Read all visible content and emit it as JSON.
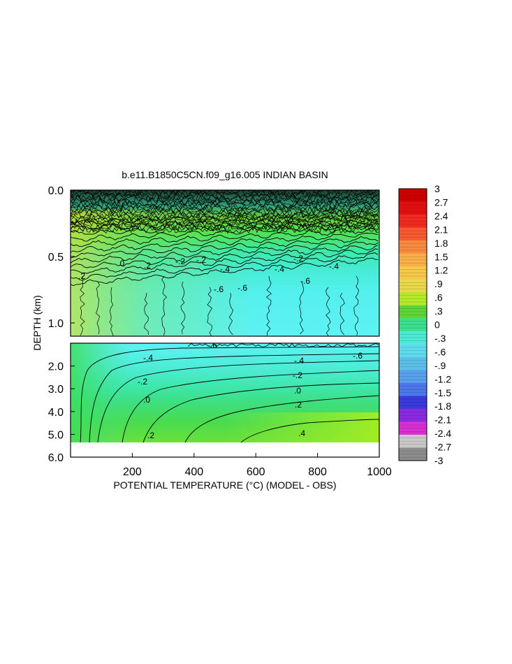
{
  "chart_data": {
    "type": "heatmap",
    "title": "b.e11.B1850C5CN.f09_g16.005 INDIAN BASIN",
    "xlabel": "POTENTIAL TEMPERATURE (°C) (MODEL - OBS)",
    "ylabel": "DEPTH (km)",
    "xlim": [
      0,
      1000
    ],
    "x_ticks": [
      200,
      400,
      600,
      800,
      1000
    ],
    "x_tick_labels": [
      "200",
      "400",
      "600",
      "800",
      "1000"
    ],
    "panels": [
      {
        "name": "upper",
        "ylim": [
          0.0,
          1.1
        ],
        "y_ticks": [
          0.0,
          0.5,
          1.0
        ],
        "y_tick_labels": [
          "0.0",
          "0.5",
          "1.0"
        ]
      },
      {
        "name": "lower",
        "ylim": [
          1.0,
          6.0
        ],
        "y_ticks": [
          2.0,
          3.0,
          4.0,
          5.0,
          6.0
        ],
        "y_tick_labels": [
          "2.0",
          "3.0",
          "4.0",
          "5.0",
          "6.0"
        ]
      }
    ],
    "contour_labels_upper": [
      ".2",
      "0",
      ".2",
      "-.2",
      "-.4",
      "-.2",
      "-.4",
      "-.2",
      "-.4",
      "-.6",
      "-.6",
      "-.6"
    ],
    "contour_labels_lower": [
      "-.6",
      "-.6",
      "-.4",
      "-.4",
      "-.2",
      "-.2",
      ".0",
      ".0",
      ".2",
      ".2",
      ".4"
    ],
    "colorbar": {
      "min": -3,
      "max": 3,
      "labels": [
        "3",
        "2.7",
        "2.4",
        "2.1",
        "1.8",
        "1.5",
        "1.2",
        ".9",
        ".6",
        ".3",
        "0",
        "-.3",
        "-.6",
        "-.9",
        "-1.2",
        "-1.5",
        "-1.8",
        "-2.1",
        "-2.4",
        "-2.7",
        "-3"
      ],
      "colors": [
        "#cc0000",
        "#e01010",
        "#f02a20",
        "#f55a30",
        "#f88a40",
        "#f9ae48",
        "#f5c84a",
        "#e8d84a",
        "#b4ea2a",
        "#5ed43a",
        "#3ce08c",
        "#4dead4",
        "#5fdcec",
        "#5cbfe8",
        "#58a0ea",
        "#4a78e8",
        "#3a3adc",
        "#8a2ae0",
        "#d830d0",
        "#c8c8c8",
        "#8c8c8c"
      ]
    }
  }
}
